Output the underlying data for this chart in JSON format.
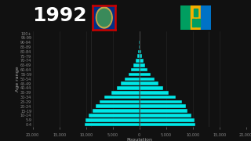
{
  "year": "1992",
  "background_color": "#111111",
  "bar_color": "#00e8e8",
  "bar_edge_color": "#111111",
  "age_groups": [
    "0-4",
    "5-9",
    "10-14",
    "15-19",
    "20-24",
    "25-29",
    "30-34",
    "35-39",
    "40-44",
    "45-49",
    "50-54",
    "55-59",
    "60-64",
    "65-69",
    "70-74",
    "75-79",
    "80-84",
    "85-89",
    "90-94",
    "95-99",
    "100+"
  ],
  "guam_values": [
    10200,
    10100,
    9500,
    8800,
    8200,
    7500,
    6500,
    5200,
    4200,
    3400,
    2700,
    2000,
    1500,
    1100,
    750,
    450,
    230,
    100,
    35,
    10,
    3
  ],
  "svg_values": [
    10500,
    10400,
    9800,
    9100,
    8700,
    8000,
    6800,
    5500,
    4500,
    3600,
    2800,
    2100,
    1600,
    1150,
    800,
    500,
    280,
    130,
    50,
    15,
    5
  ],
  "xlim": 20000,
  "xlabel": "Population",
  "ylabel": "Age range",
  "axis_label_color": "#aaaaaa",
  "tick_color": "#888888",
  "tick_fontsize": 3.5,
  "label_fontsize": 4.5,
  "year_fontsize": 18,
  "year_color": "#ffffff",
  "grid_color": "#2a2a2a",
  "x_ticks": [
    -20000,
    -15000,
    -10000,
    -5000,
    0,
    5000,
    10000,
    15000,
    20000
  ],
  "x_tick_labels": [
    "20,000",
    "15,000",
    "10,000",
    "5,000",
    "0",
    "5,000",
    "10,000",
    "15,000",
    "20,000"
  ],
  "guam_flag_colors": {
    "bg": "#003087",
    "border": "#cc0000",
    "ellipse_outer": "#c8a84b",
    "ellipse_inner": "#3a8a5a"
  },
  "svg_flag_colors": {
    "left": "#009E60",
    "center": "#F4AF00",
    "right": "#0072C6",
    "diamond": "#009E60"
  }
}
